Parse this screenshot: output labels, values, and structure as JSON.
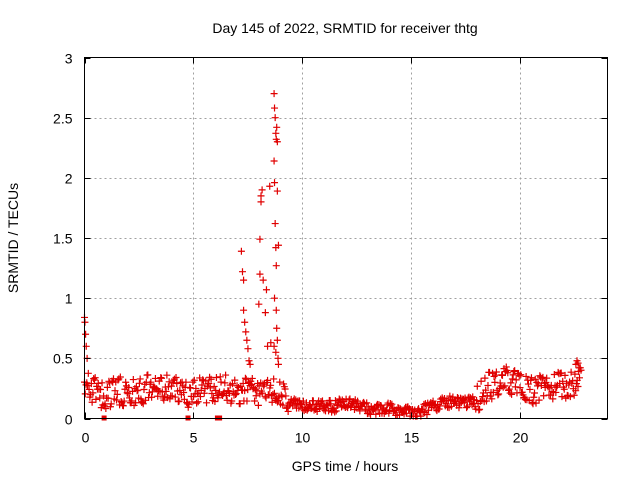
{
  "chart_data": {
    "type": "scatter",
    "title": "Day 145 of 2022, SRMTID for receiver thtg",
    "xlabel": "GPS time / hours",
    "ylabel": "SRMTID / TECUs",
    "xlim": [
      0,
      24
    ],
    "ylim": [
      0,
      3
    ],
    "x_ticks": [
      0,
      5,
      10,
      15,
      20
    ],
    "x_tick_labels": [
      "0",
      "5",
      "10",
      "15",
      "20"
    ],
    "y_ticks": [
      0,
      0.5,
      1,
      1.5,
      2,
      2.5,
      3
    ],
    "y_tick_labels": [
      "0",
      "0.5",
      "1",
      "1.5",
      "2",
      "2.5",
      "3"
    ],
    "grid": true,
    "legend": "none",
    "color": "#e00000",
    "marker": "plus",
    "series_envelope": {
      "description": "approximate baseline level of the dense point cloud, hours vs TECU",
      "x": [
        0,
        0.2,
        0.5,
        1,
        1.5,
        2,
        2.5,
        3,
        3.5,
        4,
        4.5,
        5,
        5.5,
        6,
        6.5,
        7,
        7.5,
        8,
        8.5,
        9,
        9.5,
        10,
        10.5,
        11,
        11.5,
        12,
        12.5,
        13,
        13.5,
        14,
        14.5,
        15,
        15.5,
        16,
        16.5,
        17,
        17.5,
        18,
        18.5,
        19,
        19.5,
        20,
        20.5,
        21,
        21.5,
        22,
        22.5,
        22.8
      ],
      "y": [
        0.3,
        0.25,
        0.22,
        0.2,
        0.24,
        0.2,
        0.22,
        0.26,
        0.25,
        0.24,
        0.22,
        0.2,
        0.25,
        0.22,
        0.25,
        0.2,
        0.25,
        0.22,
        0.24,
        0.2,
        0.13,
        0.1,
        0.1,
        0.11,
        0.1,
        0.14,
        0.11,
        0.08,
        0.07,
        0.08,
        0.06,
        0.05,
        0.07,
        0.1,
        0.14,
        0.14,
        0.12,
        0.16,
        0.26,
        0.3,
        0.32,
        0.26,
        0.22,
        0.27,
        0.26,
        0.27,
        0.3,
        0.33
      ]
    },
    "spike_points": [
      {
        "x": 0.0,
        "y": 0.84
      },
      {
        "x": 0.02,
        "y": 0.8
      },
      {
        "x": 0.05,
        "y": 0.7
      },
      {
        "x": 0.08,
        "y": 0.6
      },
      {
        "x": 0.12,
        "y": 0.5
      },
      {
        "x": 7.2,
        "y": 1.39
      },
      {
        "x": 7.25,
        "y": 1.22
      },
      {
        "x": 7.3,
        "y": 1.15
      },
      {
        "x": 7.3,
        "y": 0.9
      },
      {
        "x": 7.35,
        "y": 0.8
      },
      {
        "x": 7.4,
        "y": 0.72
      },
      {
        "x": 7.45,
        "y": 0.65
      },
      {
        "x": 7.5,
        "y": 0.58
      },
      {
        "x": 7.55,
        "y": 0.48
      },
      {
        "x": 7.6,
        "y": 0.45
      },
      {
        "x": 8.0,
        "y": 0.95
      },
      {
        "x": 8.05,
        "y": 1.2
      },
      {
        "x": 8.05,
        "y": 1.49
      },
      {
        "x": 8.1,
        "y": 1.8
      },
      {
        "x": 8.1,
        "y": 1.85
      },
      {
        "x": 8.15,
        "y": 1.9
      },
      {
        "x": 8.2,
        "y": 1.15
      },
      {
        "x": 8.3,
        "y": 0.88
      },
      {
        "x": 8.35,
        "y": 1.07
      },
      {
        "x": 8.4,
        "y": 0.6
      },
      {
        "x": 8.5,
        "y": 1.93
      },
      {
        "x": 8.55,
        "y": 0.63
      },
      {
        "x": 8.7,
        "y": 2.7
      },
      {
        "x": 8.72,
        "y": 2.58
      },
      {
        "x": 8.75,
        "y": 2.5
      },
      {
        "x": 8.78,
        "y": 2.37
      },
      {
        "x": 8.8,
        "y": 2.32
      },
      {
        "x": 8.7,
        "y": 2.14
      },
      {
        "x": 8.72,
        "y": 1.96
      },
      {
        "x": 8.75,
        "y": 1.62
      },
      {
        "x": 8.78,
        "y": 1.42
      },
      {
        "x": 8.8,
        "y": 1.27
      },
      {
        "x": 8.72,
        "y": 1.0
      },
      {
        "x": 8.8,
        "y": 0.9
      },
      {
        "x": 8.82,
        "y": 0.75
      },
      {
        "x": 8.85,
        "y": 0.65
      },
      {
        "x": 8.88,
        "y": 0.5
      },
      {
        "x": 8.9,
        "y": 0.45
      },
      {
        "x": 8.7,
        "y": 0.6
      },
      {
        "x": 8.78,
        "y": 0.55
      },
      {
        "x": 8.85,
        "y": 1.89
      },
      {
        "x": 8.9,
        "y": 1.44
      },
      {
        "x": 8.82,
        "y": 2.42
      },
      {
        "x": 8.85,
        "y": 2.3
      },
      {
        "x": 22.55,
        "y": 0.45
      },
      {
        "x": 22.6,
        "y": 0.48
      },
      {
        "x": 22.65,
        "y": 0.46
      },
      {
        "x": 22.7,
        "y": 0.42
      }
    ],
    "zero_points": [
      {
        "x": 0.9,
        "y": 0.0
      },
      {
        "x": 4.75,
        "y": 0.0
      },
      {
        "x": 6.1,
        "y": 0.0
      },
      {
        "x": 6.2,
        "y": 0.0
      }
    ]
  }
}
